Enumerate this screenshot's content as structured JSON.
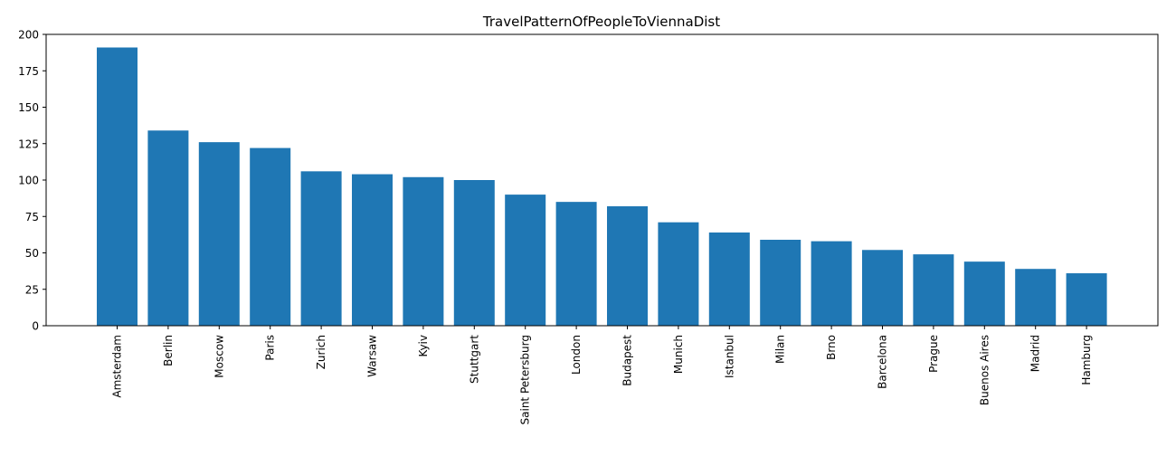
{
  "chart_data": {
    "type": "bar",
    "title": "TravelPatternOfPeopleToViennaDist",
    "xlabel": "",
    "ylabel": "",
    "categories": [
      "Amsterdam",
      "Berlin",
      "Moscow",
      "Paris",
      "Zurich",
      "Warsaw",
      "Kyiv",
      "Stuttgart",
      "Saint Petersburg",
      "London",
      "Budapest",
      "Munich",
      "Istanbul",
      "Milan",
      "Brno",
      "Barcelona",
      "Prague",
      "Buenos Aires",
      "Madrid",
      "Hamburg"
    ],
    "values": [
      191,
      134,
      126,
      122,
      106,
      104,
      102,
      100,
      90,
      85,
      82,
      71,
      64,
      59,
      58,
      52,
      49,
      44,
      39,
      36
    ],
    "ylim": [
      0,
      200
    ],
    "yticks": [
      "0",
      "25",
      "50",
      "75",
      "100",
      "125",
      "150",
      "175",
      "200"
    ],
    "grid": false,
    "bar_color": "#1f77b4"
  }
}
